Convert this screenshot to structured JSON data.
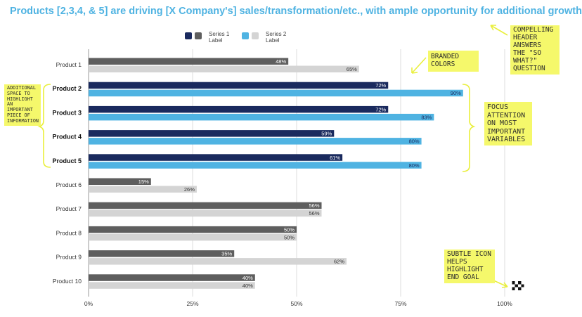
{
  "title": "Products [2,3,4, & 5] are driving [X Company's] sales/transformation/etc., with ample opportunity for additional growth",
  "colors": {
    "title": "#4fb3e2",
    "series1_highlight": "#1a2a5e",
    "series1_normal": "#5e5e5e",
    "series2_highlight": "#4fb3e2",
    "series2_normal": "#d4d4d4",
    "note_bg": "#f5f86b"
  },
  "chart_data": {
    "type": "bar",
    "orientation": "horizontal",
    "categories": [
      "Product 1",
      "Product 2",
      "Product  3",
      "Product  4",
      "Product  5",
      "Product 6",
      "Product 7",
      "Product 8",
      "Product 9",
      "Product 10"
    ],
    "highlighted": [
      "Product 2",
      "Product  3",
      "Product  4",
      "Product  5"
    ],
    "series": [
      {
        "name": "Series 1 Label",
        "values": [
          48,
          72,
          72,
          59,
          61,
          15,
          56,
          50,
          35,
          40
        ]
      },
      {
        "name": "Series 2 Label",
        "values": [
          65,
          90,
          83,
          80,
          80,
          26,
          56,
          50,
          62,
          40
        ]
      }
    ],
    "value_suffix": "%",
    "xlim": [
      0,
      100
    ],
    "xticks": [
      "0%",
      "25%",
      "50%",
      "75%",
      "100%"
    ],
    "grid": true,
    "legend_position": "top"
  },
  "annotations": {
    "header_note": "Compelling header answers the \"so what?\" question",
    "colors_note": "Branded colors",
    "space_note": "Additional space to highlight an important piece of information",
    "focus_note": "Focus attention on most important variables",
    "icon_note": "Subtle Icon helps highlight end goal",
    "icon": "checkered-flag-icon"
  }
}
